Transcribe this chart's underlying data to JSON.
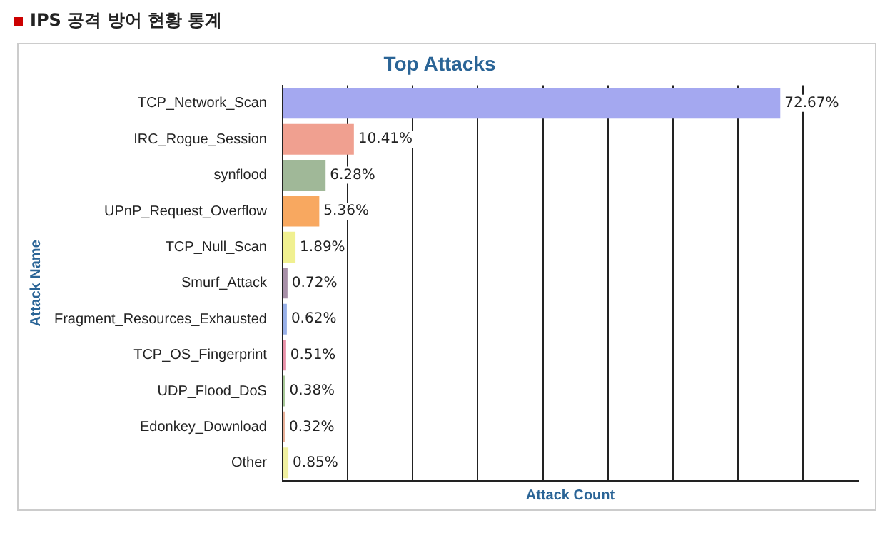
{
  "chart_data": {
    "type": "bar",
    "orientation": "horizontal",
    "title": "IPS 공격 방어 현황 통계",
    "subtitle": "Top Attacks",
    "xlabel": "Attack Count",
    "ylabel": "Attack Name",
    "categories": [
      "TCP_Network_Scan",
      "IRC_Rogue_Session",
      "synflood",
      "UPnP_Request_Overflow",
      "TCP_Null_Scan",
      "Smurf_Attack",
      "Fragment_Resources_Exhausted",
      "TCP_OS_Fingerprint",
      "UDP_Flood_DoS",
      "Edonkey_Download",
      "Other"
    ],
    "values": [
      72.67,
      10.41,
      6.28,
      5.36,
      1.89,
      0.72,
      0.62,
      0.51,
      0.38,
      0.32,
      0.85
    ],
    "value_labels": [
      "72.67%",
      "10.41%",
      "6.28%",
      "5.36%",
      "1.89%",
      "0.72%",
      "0.62%",
      "0.51%",
      "0.38%",
      "0.32%",
      "0.85%"
    ],
    "colors": [
      "#a4a8f0",
      "#f0a090",
      "#a0b898",
      "#f8a860",
      "#f0f090",
      "#a890a8",
      "#98b0e8",
      "#e890a8",
      "#a8c898",
      "#e8b098",
      "#f0f0a0"
    ],
    "xlim": [
      0,
      84
    ],
    "xticks": [
      {
        "value": 0,
        "label": null
      },
      {
        "value": 9.5,
        "label": null
      },
      {
        "value": 19,
        "label": null
      },
      {
        "value": 28.5,
        "label": null
      },
      {
        "value": 38,
        "label": null
      },
      {
        "value": 47.5,
        "label": null
      },
      {
        "value": 57,
        "label": null
      },
      {
        "value": 66.5,
        "label": null
      },
      {
        "value": 76,
        "label": null
      }
    ],
    "grid": "x",
    "tick_labels": "y",
    "legend": false
  }
}
